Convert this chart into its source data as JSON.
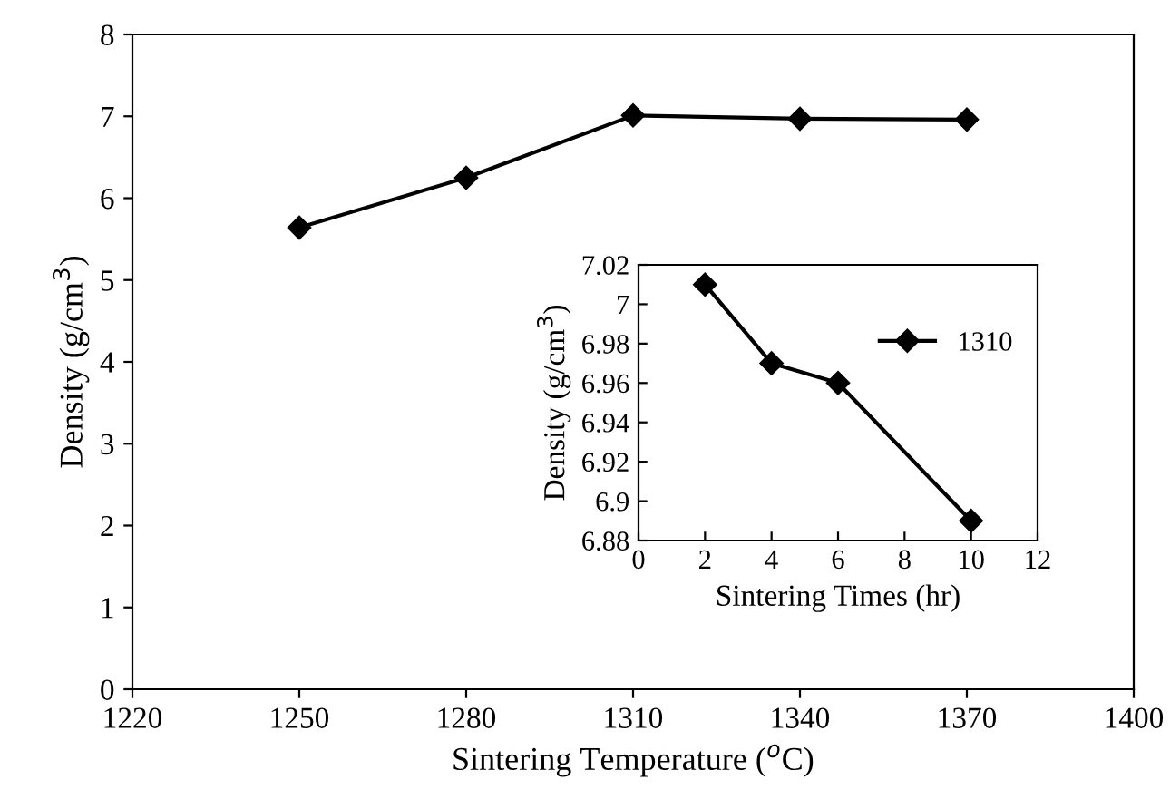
{
  "chart_data": [
    {
      "type": "line",
      "xlabel": "Sintering Temperature ($^{o}$C)",
      "ylabel": "Density (g/cm$^{3}$)",
      "x": [
        1250,
        1280,
        1310,
        1340,
        1370
      ],
      "series": [
        {
          "color": "#000000",
          "values": [
            5.64,
            6.25,
            7.01,
            6.97,
            6.96
          ]
        }
      ],
      "xlim": [
        1220,
        1400
      ],
      "xticks": [
        1220,
        1250,
        1280,
        1310,
        1340,
        1370,
        1400
      ],
      "ylim": [
        0,
        8
      ],
      "yticks": [
        0,
        1,
        2,
        3,
        4,
        5,
        6,
        7,
        8
      ],
      "marker": "diamond",
      "line_style": "solid",
      "grid": false,
      "legend": false
    },
    {
      "type": "line",
      "xlabel": "Sintering Times (hr)",
      "ylabel": "Density (g/cm$^{3}$)",
      "x": [
        2,
        4,
        6,
        10
      ],
      "series": [
        {
          "name": "1310",
          "color": "#000000",
          "values": [
            7.01,
            6.97,
            6.96,
            6.89
          ]
        }
      ],
      "xlim": [
        0,
        12
      ],
      "xticks": [
        0,
        2,
        4,
        6,
        8,
        10,
        12
      ],
      "ylim": [
        6.88,
        7.02
      ],
      "yticks": [
        6.88,
        {
          "value": 6.9,
          "label": "6.9"
        },
        6.92,
        6.94,
        6.96,
        6.98,
        {
          "value": 7.0,
          "label": "7"
        },
        7.02
      ],
      "marker": "diamond",
      "line_style": "solid",
      "grid": false,
      "legend": "top right"
    }
  ]
}
